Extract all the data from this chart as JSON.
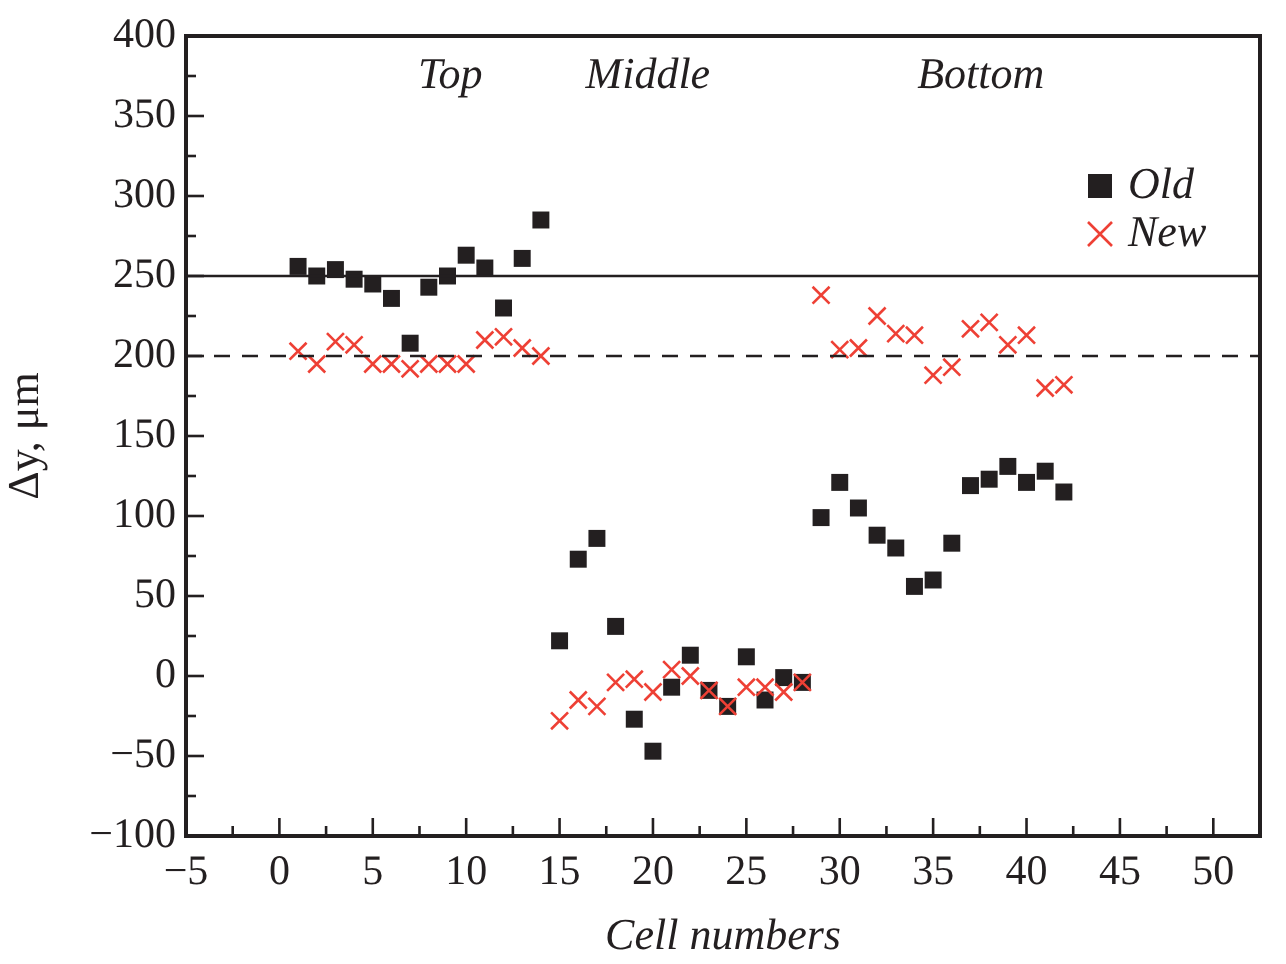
{
  "chart_data": {
    "type": "scatter",
    "xlabel": "Cell numbers",
    "ylabel": "Δy, μm",
    "xlim": [
      -5,
      52.5
    ],
    "xticks": [
      -5,
      {
        "value": -2.5,
        "label": null
      },
      0,
      {
        "value": 2.5,
        "label": null
      },
      5,
      {
        "value": 7.5,
        "label": null
      },
      10,
      {
        "value": 12.5,
        "label": null
      },
      15,
      {
        "value": 17.5,
        "label": null
      },
      20,
      {
        "value": 22.5,
        "label": null
      },
      25,
      {
        "value": 27.5,
        "label": null
      },
      30,
      {
        "value": 32.5,
        "label": null
      },
      35,
      {
        "value": 37.5,
        "label": null
      },
      40,
      {
        "value": 42.5,
        "label": null
      },
      45,
      {
        "value": 47.5,
        "label": null
      },
      50
    ],
    "ylim": [
      -100,
      400
    ],
    "yticks": [
      -100,
      {
        "value": -75,
        "label": null
      },
      -50,
      {
        "value": -25,
        "label": null
      },
      0,
      {
        "value": 25,
        "label": null
      },
      50,
      {
        "value": 75,
        "label": null
      },
      100,
      {
        "value": 125,
        "label": null
      },
      150,
      {
        "value": 175,
        "label": null
      },
      200,
      {
        "value": 225,
        "label": null
      },
      250,
      {
        "value": 275,
        "label": null
      },
      300,
      {
        "value": 325,
        "label": null
      },
      350,
      {
        "value": 375,
        "label": null
      },
      400
    ],
    "x": [
      1,
      2,
      3,
      4,
      5,
      6,
      7,
      8,
      9,
      10,
      11,
      12,
      13,
      14,
      15,
      16,
      17,
      18,
      19,
      20,
      21,
      22,
      23,
      24,
      25,
      26,
      27,
      28,
      29,
      30,
      31,
      32,
      33,
      34,
      35,
      36,
      37,
      38,
      39,
      40,
      41,
      42
    ],
    "series": [
      {
        "name": "Old",
        "color": "#231f20",
        "marker": "square",
        "values": [
          256,
          250,
          254,
          248,
          245,
          236,
          208,
          243,
          250,
          263,
          255,
          230,
          261,
          285,
          22,
          73,
          86,
          31,
          -27,
          -47,
          -7,
          13,
          -9,
          -19,
          12,
          -15,
          -1,
          -4,
          99,
          121,
          105,
          88,
          80,
          56,
          60,
          83,
          119,
          123,
          131,
          121,
          128,
          115
        ]
      },
      {
        "name": "New",
        "color": "#ee4035",
        "marker": "cross",
        "values": [
          203,
          195,
          209,
          207,
          195,
          195,
          192,
          195,
          195,
          195,
          210,
          212,
          205,
          200,
          -28,
          -15,
          -19,
          -4,
          -2,
          -10,
          4,
          0,
          -9,
          -19,
          -7,
          -7,
          -10,
          -4,
          238,
          204,
          205,
          225,
          214,
          213,
          188,
          193,
          217,
          221,
          207,
          213,
          180,
          182
        ]
      }
    ],
    "ref_lines": [
      {
        "axis": "y",
        "value": 250,
        "line_style": "solid",
        "color": "#231f20"
      },
      {
        "axis": "y",
        "value": 200,
        "line_style": "dashed",
        "color": "#231f20"
      }
    ],
    "annotations": [
      "Top",
      "Middle",
      "Bottom"
    ],
    "legend": "top right",
    "grid": false
  }
}
